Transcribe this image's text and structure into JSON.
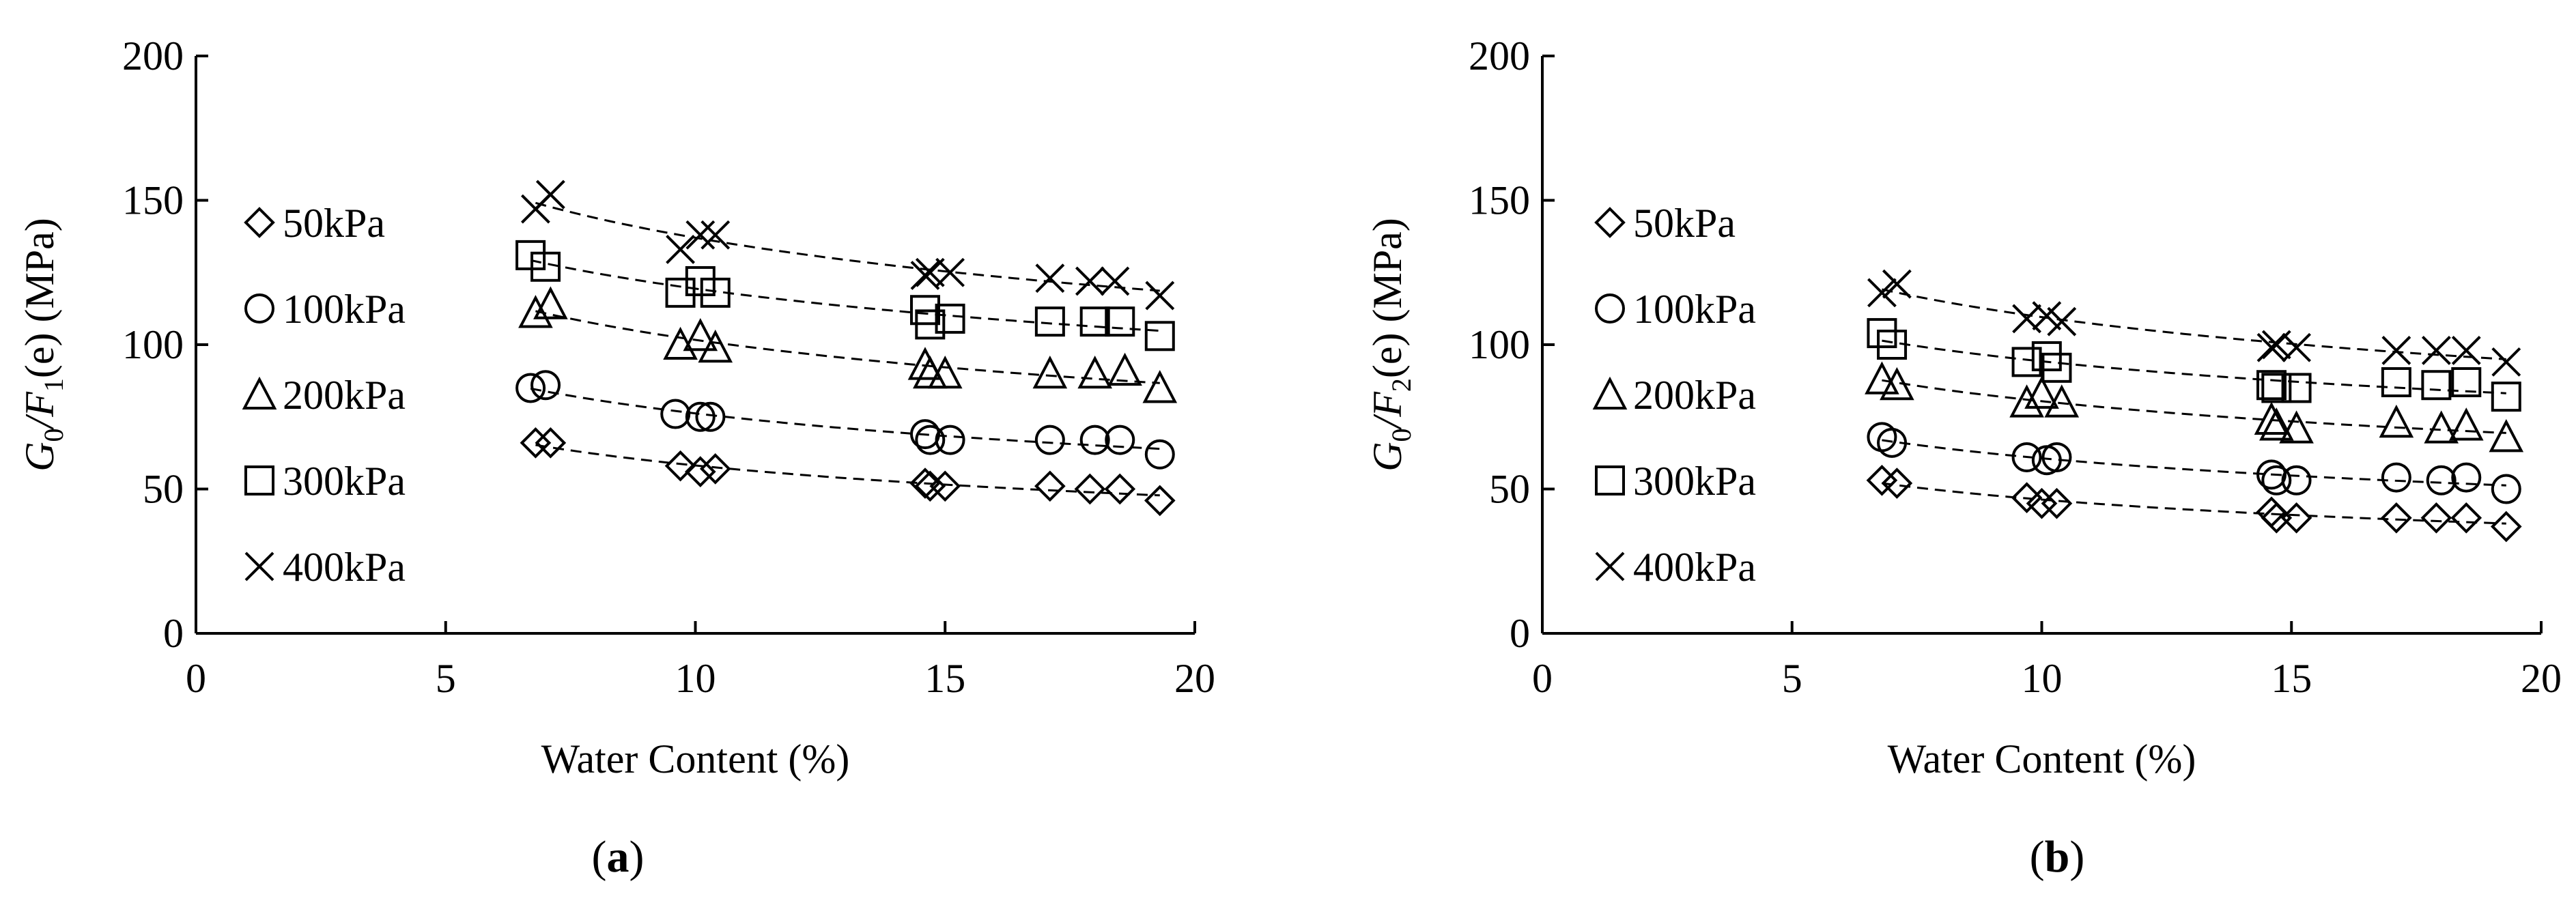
{
  "chart_data": [
    {
      "type": "scatter",
      "panel_label": "a",
      "xlabel": "Water Content (%)",
      "ylabel": {
        "main": "G",
        "sub0": "0",
        "mid": "/F",
        "sub1": "1",
        "tail": "(e) (MPa)"
      },
      "xlim": [
        0,
        20
      ],
      "ylim": [
        0,
        200
      ],
      "xticks": [
        0,
        5,
        10,
        15,
        20
      ],
      "yticks": [
        0,
        50,
        100,
        150,
        200
      ],
      "grid": false,
      "legend_position": "left",
      "trendlines": "dashed power fit per series",
      "series": [
        {
          "name": "50kPa",
          "marker": "diamond",
          "points": [
            [
              6.8,
              66
            ],
            [
              7.1,
              66
            ],
            [
              9.7,
              58
            ],
            [
              10.1,
              56
            ],
            [
              10.4,
              57
            ],
            [
              14.6,
              52
            ],
            [
              14.7,
              51
            ],
            [
              15.0,
              51
            ],
            [
              17.1,
              51
            ],
            [
              17.9,
              50
            ],
            [
              18.5,
              50
            ],
            [
              19.3,
              46
            ]
          ]
        },
        {
          "name": "100kPa",
          "marker": "circle",
          "points": [
            [
              6.7,
              85
            ],
            [
              7.0,
              86
            ],
            [
              9.6,
              76
            ],
            [
              10.1,
              75
            ],
            [
              10.3,
              75
            ],
            [
              14.6,
              69
            ],
            [
              14.7,
              67
            ],
            [
              15.1,
              67
            ],
            [
              17.1,
              67
            ],
            [
              18.0,
              67
            ],
            [
              18.5,
              67
            ],
            [
              19.3,
              62
            ]
          ]
        },
        {
          "name": "200kPa",
          "marker": "triangle",
          "points": [
            [
              6.8,
              111
            ],
            [
              7.1,
              114
            ],
            [
              9.7,
              100
            ],
            [
              10.1,
              103
            ],
            [
              10.4,
              99
            ],
            [
              14.6,
              93
            ],
            [
              14.7,
              90
            ],
            [
              15.0,
              90
            ],
            [
              17.1,
              90
            ],
            [
              18.0,
              90
            ],
            [
              18.6,
              91
            ],
            [
              19.3,
              85
            ]
          ]
        },
        {
          "name": "300kPa",
          "marker": "square",
          "points": [
            [
              6.7,
              131
            ],
            [
              7.0,
              127
            ],
            [
              9.7,
              118
            ],
            [
              10.1,
              122
            ],
            [
              10.4,
              118
            ],
            [
              14.6,
              112
            ],
            [
              14.7,
              107
            ],
            [
              15.1,
              109
            ],
            [
              17.1,
              108
            ],
            [
              18.0,
              108
            ],
            [
              18.5,
              108
            ],
            [
              19.3,
              103
            ]
          ]
        },
        {
          "name": "400kPa",
          "marker": "cross",
          "points": [
            [
              6.8,
              147
            ],
            [
              7.1,
              152
            ],
            [
              9.7,
              133
            ],
            [
              10.1,
              138
            ],
            [
              10.4,
              138
            ],
            [
              14.6,
              124
            ],
            [
              14.7,
              125
            ],
            [
              15.1,
              125
            ],
            [
              17.1,
              123
            ],
            [
              17.9,
              122
            ],
            [
              18.4,
              122
            ],
            [
              19.3,
              117
            ]
          ]
        }
      ]
    },
    {
      "type": "scatter",
      "panel_label": "b",
      "xlabel": "Water Content (%)",
      "ylabel": {
        "main": "G",
        "sub0": "0",
        "mid": "/F",
        "sub1": "2",
        "tail": "(e) (MPa)"
      },
      "xlim": [
        0,
        20
      ],
      "ylim": [
        0,
        200
      ],
      "xticks": [
        0,
        5,
        10,
        15,
        20
      ],
      "yticks": [
        0,
        50,
        100,
        150,
        200
      ],
      "grid": false,
      "legend_position": "left",
      "trendlines": "dashed power fit per series",
      "series": [
        {
          "name": "50kPa",
          "marker": "diamond",
          "points": [
            [
              6.8,
              53
            ],
            [
              7.1,
              52
            ],
            [
              9.7,
              47
            ],
            [
              10.0,
              45
            ],
            [
              10.3,
              45
            ],
            [
              14.6,
              42
            ],
            [
              14.7,
              40
            ],
            [
              15.1,
              40
            ],
            [
              17.1,
              40
            ],
            [
              17.9,
              40
            ],
            [
              18.5,
              40
            ],
            [
              19.3,
              37
            ]
          ]
        },
        {
          "name": "100kPa",
          "marker": "circle",
          "points": [
            [
              6.8,
              68
            ],
            [
              7.0,
              66
            ],
            [
              9.7,
              61
            ],
            [
              10.1,
              60
            ],
            [
              10.3,
              61
            ],
            [
              14.6,
              55
            ],
            [
              14.7,
              53
            ],
            [
              15.1,
              53
            ],
            [
              17.1,
              54
            ],
            [
              18.0,
              53
            ],
            [
              18.5,
              54
            ],
            [
              19.3,
              50
            ]
          ]
        },
        {
          "name": "200kPa",
          "marker": "triangle",
          "points": [
            [
              6.8,
              88
            ],
            [
              7.1,
              86
            ],
            [
              9.7,
              80
            ],
            [
              10.0,
              83
            ],
            [
              10.4,
              80
            ],
            [
              14.6,
              74
            ],
            [
              14.7,
              72
            ],
            [
              15.1,
              71
            ],
            [
              17.1,
              73
            ],
            [
              18.0,
              71
            ],
            [
              18.5,
              72
            ],
            [
              19.3,
              68
            ]
          ]
        },
        {
          "name": "300kPa",
          "marker": "square",
          "points": [
            [
              6.8,
              104
            ],
            [
              7.0,
              100
            ],
            [
              9.7,
              94
            ],
            [
              10.1,
              96
            ],
            [
              10.3,
              92
            ],
            [
              14.6,
              86
            ],
            [
              14.7,
              85
            ],
            [
              15.1,
              85
            ],
            [
              17.1,
              87
            ],
            [
              17.9,
              86
            ],
            [
              18.5,
              87
            ],
            [
              19.3,
              82
            ]
          ]
        },
        {
          "name": "400kPa",
          "marker": "cross",
          "points": [
            [
              6.8,
              118
            ],
            [
              7.1,
              121
            ],
            [
              9.7,
              109
            ],
            [
              10.1,
              110
            ],
            [
              10.4,
              108
            ],
            [
              14.6,
              99
            ],
            [
              14.7,
              100
            ],
            [
              15.1,
              99
            ],
            [
              17.1,
              98
            ],
            [
              17.9,
              98
            ],
            [
              18.5,
              98
            ],
            [
              19.3,
              94
            ]
          ]
        }
      ]
    }
  ],
  "colors": {
    "ink": "#000000",
    "background": "#ffffff"
  }
}
